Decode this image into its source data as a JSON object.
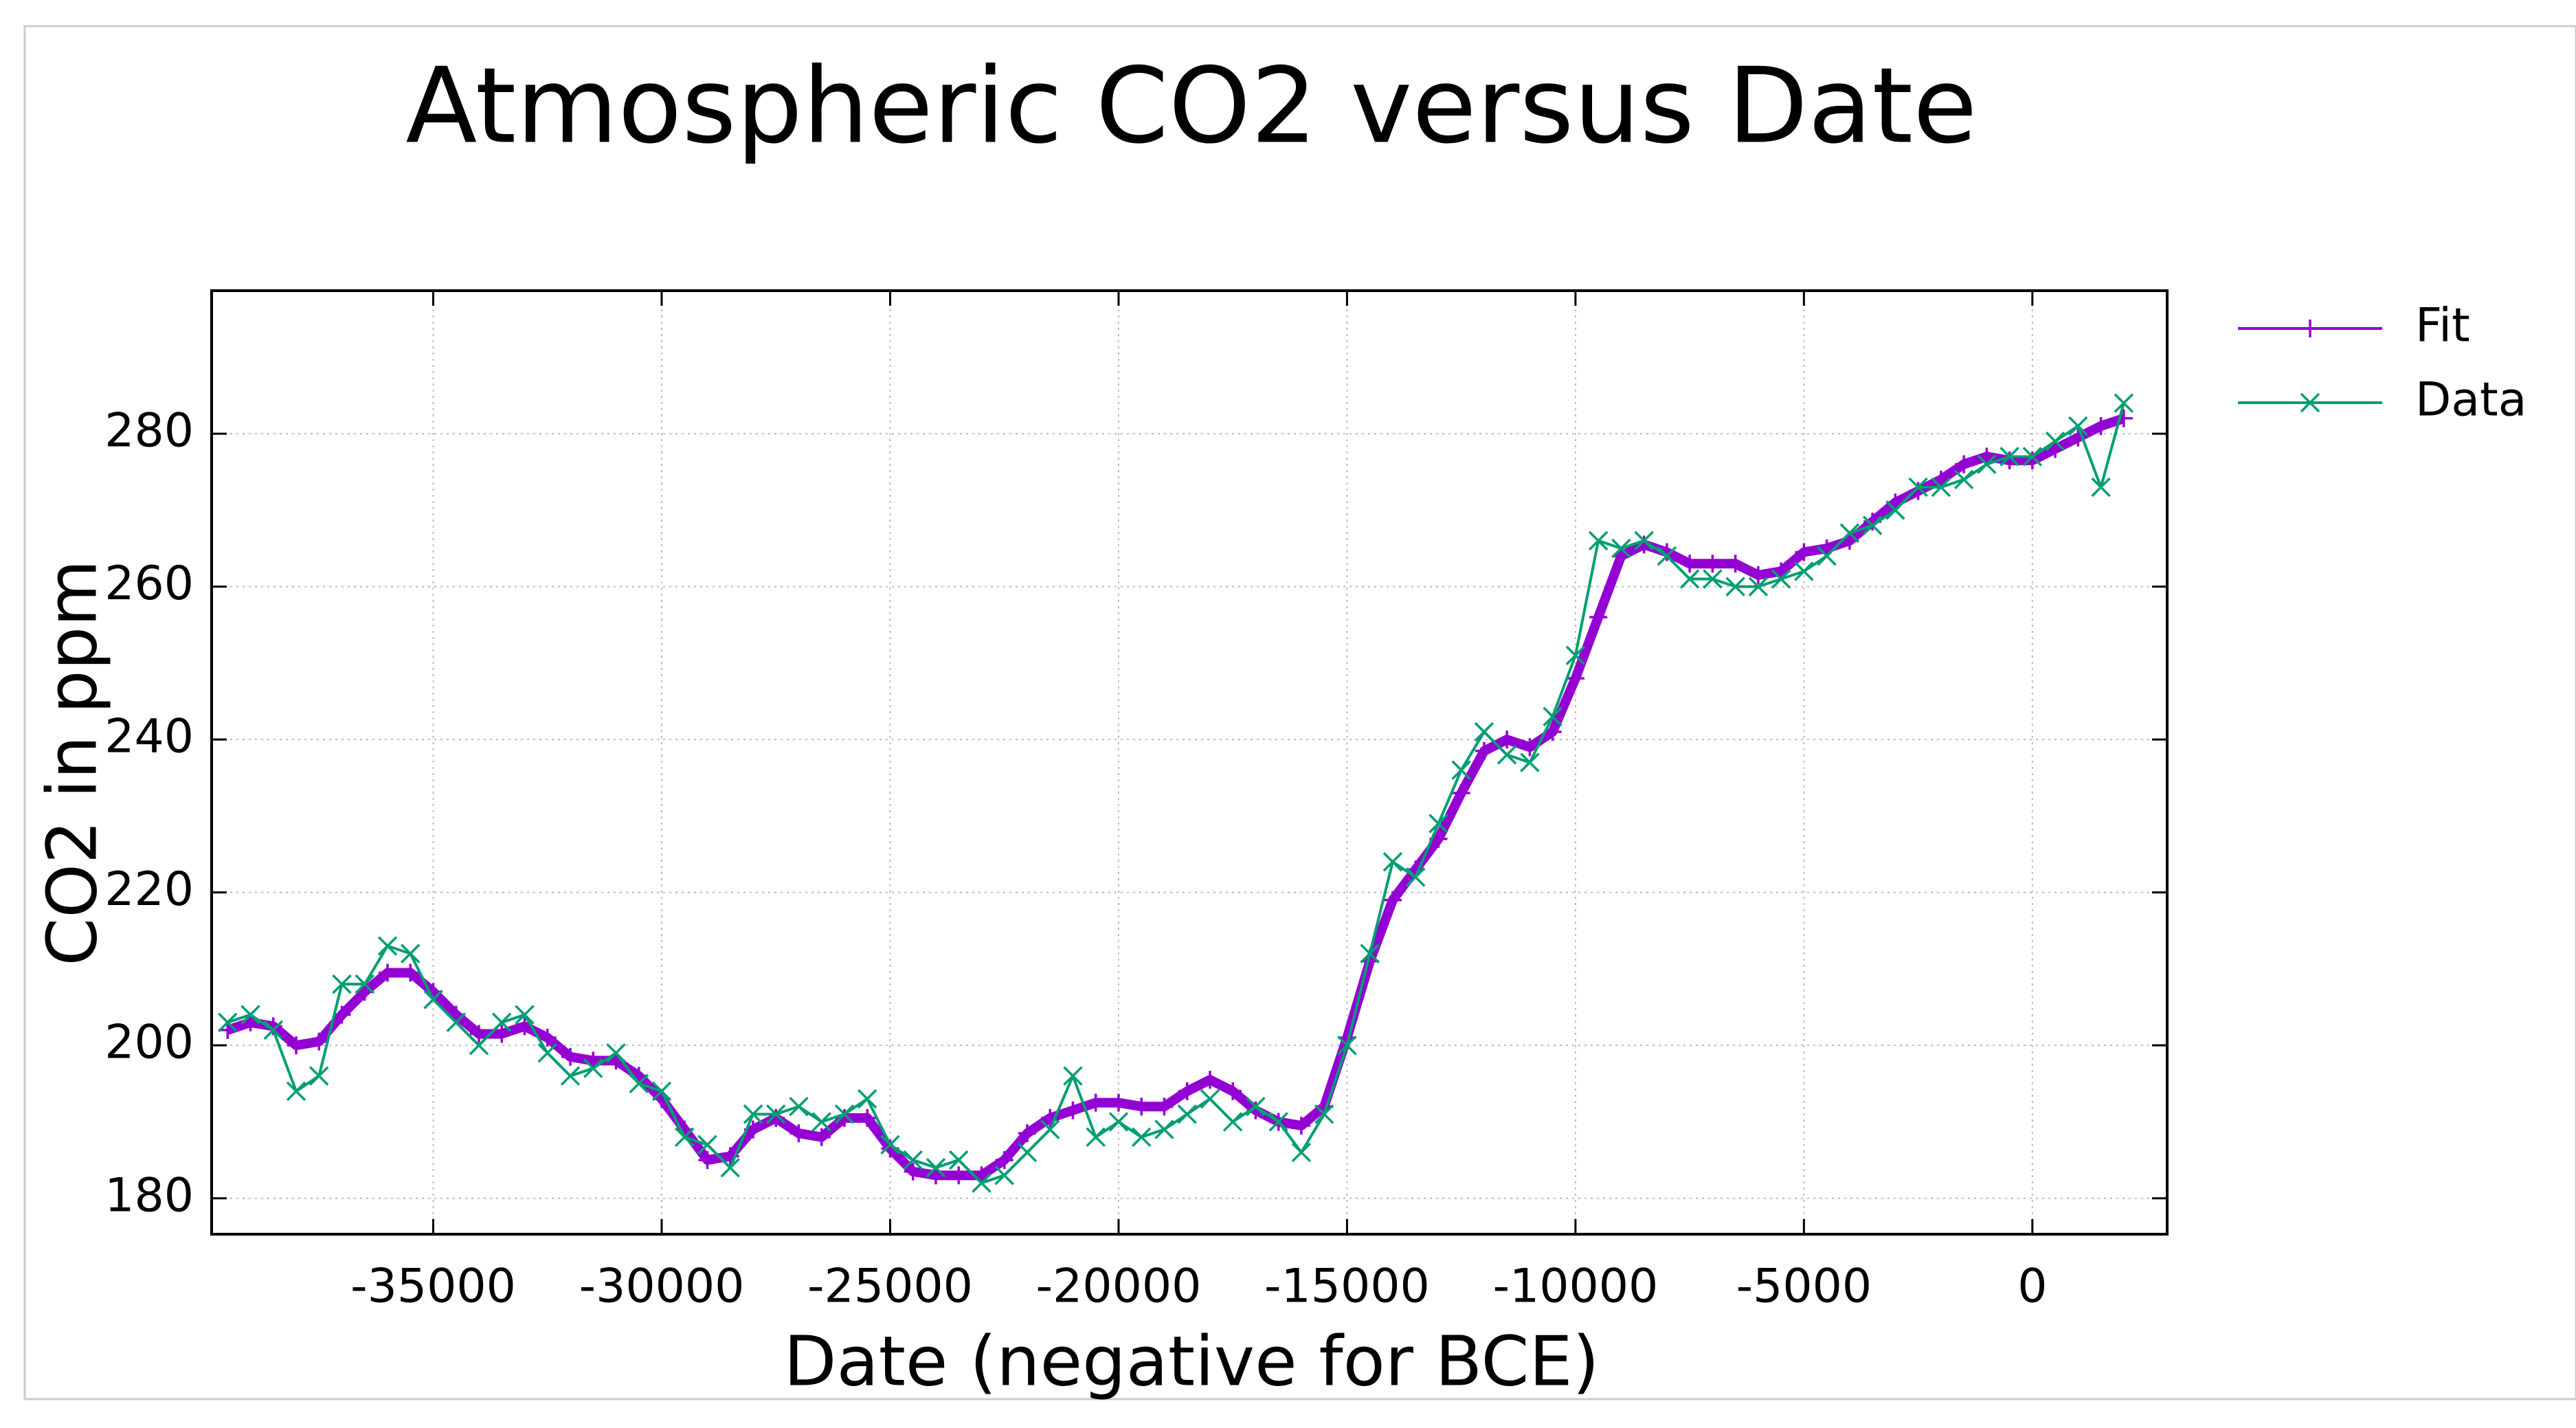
{
  "chart_data": {
    "type": "line",
    "title": "Atmospheric CO2 versus Date",
    "xlabel": "Date (negative for BCE)",
    "ylabel": "CO2 in ppm",
    "x": [
      -39500,
      -39000,
      -38500,
      -38000,
      -37500,
      -37000,
      -36500,
      -36000,
      -35500,
      -35000,
      -34500,
      -34000,
      -33500,
      -33000,
      -32500,
      -32000,
      -31500,
      -31000,
      -30500,
      -30000,
      -29500,
      -29000,
      -28500,
      -28000,
      -27500,
      -27000,
      -26500,
      -26000,
      -25500,
      -25000,
      -24500,
      -24000,
      -23500,
      -23000,
      -22500,
      -22000,
      -21500,
      -21000,
      -20500,
      -20000,
      -19500,
      -19000,
      -18500,
      -18000,
      -17500,
      -17000,
      -16500,
      -16000,
      -15500,
      -15000,
      -14500,
      -14000,
      -13500,
      -13000,
      -12500,
      -12000,
      -11500,
      -11000,
      -10500,
      -10000,
      -9500,
      -9000,
      -8500,
      -8000,
      -7500,
      -7000,
      -6500,
      -6000,
      -5500,
      -5000,
      -4500,
      -4000,
      -3500,
      -3000,
      -2500,
      -2000,
      -1500,
      -1000,
      -500,
      0,
      500,
      1000,
      1500,
      2000
    ],
    "series": [
      {
        "name": "Fit",
        "color": "#9400d3",
        "marker": "plus",
        "values": [
          202,
          203,
          202.5,
          200,
          200.5,
          204,
          207,
          209.5,
          209.5,
          207,
          204,
          201.5,
          201.5,
          202.5,
          201,
          198.5,
          198,
          198,
          196,
          193,
          189,
          185,
          185.5,
          189,
          190.5,
          188.5,
          188,
          190.5,
          190.5,
          186.5,
          183.5,
          183,
          183,
          183,
          185,
          188.5,
          190.5,
          191.5,
          192.5,
          192.5,
          192,
          192,
          194,
          195.5,
          194,
          191.5,
          190,
          189.5,
          192,
          201,
          211,
          219,
          223,
          227,
          233,
          238.5,
          240,
          239,
          241,
          248,
          256,
          264,
          265.5,
          264.5,
          263,
          263,
          263,
          261.5,
          262,
          264.5,
          265,
          266,
          268.5,
          271,
          272.5,
          274,
          276,
          277,
          276.5,
          276.5,
          278,
          279.5,
          281,
          282
        ]
      },
      {
        "name": "Data",
        "color": "#009e73",
        "marker": "cross",
        "values": [
          203,
          204,
          202,
          194,
          196,
          208,
          208,
          213,
          212,
          206,
          203,
          200,
          203,
          204,
          199,
          196,
          197,
          199,
          195,
          194,
          188,
          187,
          184,
          191,
          191,
          192,
          190,
          191,
          193,
          187,
          185,
          184,
          185,
          182,
          183,
          186,
          189,
          196,
          188,
          190,
          188,
          189,
          191,
          193,
          190,
          192,
          190,
          186,
          191,
          200,
          212,
          224,
          222,
          229,
          236,
          241,
          238,
          237,
          243,
          251,
          266,
          265,
          266,
          264,
          261,
          261,
          260,
          260,
          261,
          262,
          264,
          267,
          268,
          270,
          273,
          273,
          274,
          276,
          277,
          277,
          279,
          281,
          273,
          284
        ]
      }
    ],
    "xlim": [
      -39850,
      2950
    ],
    "ylim": [
      175.3,
      298.7
    ],
    "xticks": [
      -35000,
      -30000,
      -25000,
      -20000,
      -15000,
      -10000,
      -5000,
      0
    ],
    "yticks": [
      180,
      200,
      220,
      240,
      260,
      280
    ],
    "grid": true,
    "legend": "top-right"
  }
}
